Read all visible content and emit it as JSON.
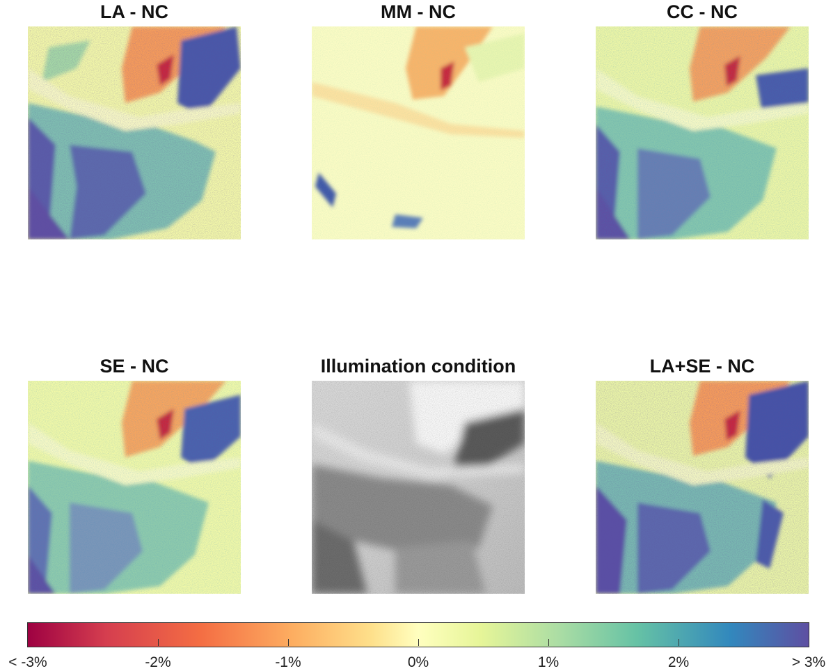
{
  "chart_data": {
    "type": "heatmap",
    "panels": [
      {
        "id": "la",
        "title": "LA - NC"
      },
      {
        "id": "mm",
        "title": "MM - NC"
      },
      {
        "id": "cc",
        "title": "CC - NC"
      },
      {
        "id": "se",
        "title": "SE - NC"
      },
      {
        "id": "illum",
        "title": "Illumination condition"
      },
      {
        "id": "lase",
        "title": "LA+SE - NC"
      }
    ],
    "colorbar": {
      "orientation": "horizontal",
      "range": [
        -3,
        3
      ],
      "unit": "%",
      "ticks": [
        -3,
        -2,
        -1,
        0,
        1,
        2,
        3
      ],
      "tick_labels": [
        "< -3%",
        "-2%",
        "-1%",
        "0%",
        "1%",
        "2%",
        "> 3%"
      ],
      "colormap": [
        "#9e0142",
        "#d53e4f",
        "#f46d43",
        "#fdae61",
        "#fee08b",
        "#ffffbf",
        "#e6f598",
        "#abdda4",
        "#66c2a5",
        "#3288bd",
        "#5e4fa2"
      ]
    }
  }
}
